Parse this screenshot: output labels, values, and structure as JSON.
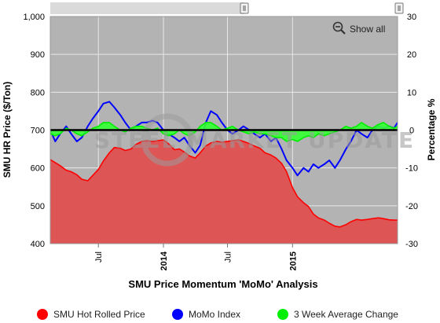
{
  "chart_data": {
    "type": "area",
    "title": "SMU Price Momentum 'MoMo' Analysis",
    "ylabel": "SMU HR Price ($/Ton)",
    "y2label": "Percentage %",
    "ylim": [
      400,
      1000
    ],
    "y2lim": [
      -30,
      30
    ],
    "yticks": [
      "400",
      "500",
      "600",
      "700",
      "800",
      "900",
      "1,000"
    ],
    "y2ticks": [
      "-30",
      "-20",
      "-10",
      "0",
      "10",
      "20",
      "30"
    ],
    "xlim": [
      "2013-02-15",
      "2015-10-25"
    ],
    "xticks": [
      {
        "date": "2013-07-01",
        "label": "Jul",
        "bold": false
      },
      {
        "date": "2014-01-01",
        "label": "2014",
        "bold": true
      },
      {
        "date": "2014-07-01",
        "label": "Jul",
        "bold": false
      },
      {
        "date": "2015-01-01",
        "label": "2015",
        "bold": true
      }
    ],
    "grid": true,
    "legend_position": "bottom",
    "watermark": "STEEL MARKET UPDATE",
    "series": [
      {
        "name": "SMU Hot Rolled Price",
        "axis": "left",
        "color": "#ff0000",
        "fill": "#dd5555",
        "points": [
          [
            "2013-02-15",
            622
          ],
          [
            "2013-03-01",
            614
          ],
          [
            "2013-03-15",
            606
          ],
          [
            "2013-04-01",
            594
          ],
          [
            "2013-04-15",
            590
          ],
          [
            "2013-05-01",
            582
          ],
          [
            "2013-05-15",
            570
          ],
          [
            "2013-06-01",
            566
          ],
          [
            "2013-06-15",
            580
          ],
          [
            "2013-07-01",
            596
          ],
          [
            "2013-07-15",
            618
          ],
          [
            "2013-08-01",
            640
          ],
          [
            "2013-08-15",
            654
          ],
          [
            "2013-09-01",
            652
          ],
          [
            "2013-09-15",
            646
          ],
          [
            "2013-10-01",
            650
          ],
          [
            "2013-10-15",
            662
          ],
          [
            "2013-11-01",
            670
          ],
          [
            "2013-11-15",
            672
          ],
          [
            "2013-12-01",
            670
          ],
          [
            "2013-12-15",
            672
          ],
          [
            "2014-01-01",
            674
          ],
          [
            "2014-01-15",
            664
          ],
          [
            "2014-02-01",
            648
          ],
          [
            "2014-02-15",
            650
          ],
          [
            "2014-03-01",
            642
          ],
          [
            "2014-03-15",
            632
          ],
          [
            "2014-04-01",
            626
          ],
          [
            "2014-04-15",
            640
          ],
          [
            "2014-05-01",
            658
          ],
          [
            "2014-05-15",
            666
          ],
          [
            "2014-06-01",
            670
          ],
          [
            "2014-06-15",
            668
          ],
          [
            "2014-07-01",
            670
          ],
          [
            "2014-07-15",
            672
          ],
          [
            "2014-08-01",
            674
          ],
          [
            "2014-08-15",
            670
          ],
          [
            "2014-09-01",
            664
          ],
          [
            "2014-09-15",
            658
          ],
          [
            "2014-10-01",
            652
          ],
          [
            "2014-10-15",
            640
          ],
          [
            "2014-11-01",
            634
          ],
          [
            "2014-11-15",
            626
          ],
          [
            "2014-12-01",
            612
          ],
          [
            "2014-12-15",
            590
          ],
          [
            "2015-01-01",
            548
          ],
          [
            "2015-01-15",
            524
          ],
          [
            "2015-02-01",
            508
          ],
          [
            "2015-02-15",
            498
          ],
          [
            "2015-03-01",
            478
          ],
          [
            "2015-03-15",
            468
          ],
          [
            "2015-04-01",
            462
          ],
          [
            "2015-04-15",
            454
          ],
          [
            "2015-05-01",
            446
          ],
          [
            "2015-05-15",
            444
          ],
          [
            "2015-06-01",
            450
          ],
          [
            "2015-06-15",
            458
          ],
          [
            "2015-07-01",
            464
          ],
          [
            "2015-07-15",
            462
          ],
          [
            "2015-08-01",
            464
          ],
          [
            "2015-08-15",
            466
          ],
          [
            "2015-09-01",
            468
          ],
          [
            "2015-09-15",
            466
          ],
          [
            "2015-10-01",
            463
          ],
          [
            "2015-10-15",
            462
          ],
          [
            "2015-10-25",
            462
          ]
        ]
      },
      {
        "name": "MoMo Index",
        "axis": "right",
        "color": "#0000ff",
        "points": [
          [
            "2013-02-15",
            0
          ],
          [
            "2013-03-01",
            -3
          ],
          [
            "2013-03-15",
            -1
          ],
          [
            "2013-04-01",
            1
          ],
          [
            "2013-04-15",
            -1
          ],
          [
            "2013-05-01",
            -3
          ],
          [
            "2013-05-15",
            -2
          ],
          [
            "2013-06-01",
            1
          ],
          [
            "2013-06-15",
            3
          ],
          [
            "2013-07-01",
            5
          ],
          [
            "2013-07-15",
            7
          ],
          [
            "2013-08-01",
            7.5
          ],
          [
            "2013-08-15",
            6
          ],
          [
            "2013-09-01",
            4
          ],
          [
            "2013-09-15",
            2
          ],
          [
            "2013-10-01",
            0
          ],
          [
            "2013-10-15",
            1
          ],
          [
            "2013-11-01",
            2
          ],
          [
            "2013-11-15",
            2
          ],
          [
            "2013-12-01",
            2.5
          ],
          [
            "2013-12-15",
            2
          ],
          [
            "2014-01-01",
            0
          ],
          [
            "2014-01-15",
            -1
          ],
          [
            "2014-02-01",
            -2
          ],
          [
            "2014-02-15",
            -3
          ],
          [
            "2014-03-01",
            -2
          ],
          [
            "2014-03-15",
            -4
          ],
          [
            "2014-04-01",
            -6
          ],
          [
            "2014-04-15",
            -4
          ],
          [
            "2014-05-01",
            2
          ],
          [
            "2014-05-15",
            5
          ],
          [
            "2014-06-01",
            4
          ],
          [
            "2014-06-15",
            2
          ],
          [
            "2014-07-01",
            0
          ],
          [
            "2014-07-15",
            -1
          ],
          [
            "2014-08-01",
            0
          ],
          [
            "2014-08-15",
            1
          ],
          [
            "2014-09-01",
            0
          ],
          [
            "2014-09-15",
            -1
          ],
          [
            "2014-10-01",
            -2
          ],
          [
            "2014-10-15",
            -1
          ],
          [
            "2014-11-01",
            -3
          ],
          [
            "2014-11-15",
            -2
          ],
          [
            "2014-12-01",
            -5
          ],
          [
            "2014-12-15",
            -8
          ],
          [
            "2015-01-01",
            -10
          ],
          [
            "2015-01-15",
            -12
          ],
          [
            "2015-02-01",
            -10
          ],
          [
            "2015-02-15",
            -11
          ],
          [
            "2015-03-01",
            -9
          ],
          [
            "2015-03-15",
            -10
          ],
          [
            "2015-04-01",
            -9
          ],
          [
            "2015-04-15",
            -8
          ],
          [
            "2015-05-01",
            -10
          ],
          [
            "2015-05-15",
            -8
          ],
          [
            "2015-06-01",
            -5
          ],
          [
            "2015-06-15",
            -3
          ],
          [
            "2015-07-01",
            0
          ],
          [
            "2015-07-15",
            -1
          ],
          [
            "2015-08-01",
            -2
          ],
          [
            "2015-08-15",
            0
          ],
          [
            "2015-09-01",
            1
          ],
          [
            "2015-09-15",
            0.5
          ],
          [
            "2015-10-01",
            1
          ],
          [
            "2015-10-15",
            0.5
          ],
          [
            "2015-10-25",
            2
          ]
        ]
      },
      {
        "name": "3 Week Average Change",
        "axis": "right",
        "color": "#00ee00",
        "fill": "#33ff33",
        "points": [
          [
            "2013-02-15",
            -1
          ],
          [
            "2013-03-01",
            -1.5
          ],
          [
            "2013-03-15",
            -1
          ],
          [
            "2013-04-01",
            0.5
          ],
          [
            "2013-04-15",
            0
          ],
          [
            "2013-05-01",
            -1
          ],
          [
            "2013-05-15",
            -1.5
          ],
          [
            "2013-06-01",
            -0.5
          ],
          [
            "2013-06-15",
            0.5
          ],
          [
            "2013-07-01",
            1
          ],
          [
            "2013-07-15",
            2
          ],
          [
            "2013-08-01",
            2
          ],
          [
            "2013-08-15",
            1
          ],
          [
            "2013-09-01",
            0
          ],
          [
            "2013-09-15",
            -0.5
          ],
          [
            "2013-10-01",
            0.5
          ],
          [
            "2013-10-15",
            1
          ],
          [
            "2013-11-01",
            1
          ],
          [
            "2013-11-15",
            0.5
          ],
          [
            "2013-12-01",
            0
          ],
          [
            "2013-12-15",
            0.5
          ],
          [
            "2014-01-01",
            -1
          ],
          [
            "2014-01-15",
            -1.5
          ],
          [
            "2014-02-01",
            -1
          ],
          [
            "2014-02-15",
            0
          ],
          [
            "2014-03-01",
            -1
          ],
          [
            "2014-03-15",
            -1.5
          ],
          [
            "2014-04-01",
            -0.5
          ],
          [
            "2014-04-15",
            1
          ],
          [
            "2014-05-01",
            2
          ],
          [
            "2014-05-15",
            2
          ],
          [
            "2014-06-01",
            1
          ],
          [
            "2014-06-15",
            0
          ],
          [
            "2014-07-01",
            0.5
          ],
          [
            "2014-07-15",
            1
          ],
          [
            "2014-08-01",
            0
          ],
          [
            "2014-08-15",
            -0.5
          ],
          [
            "2014-09-01",
            -1
          ],
          [
            "2014-09-15",
            -0.5
          ],
          [
            "2014-10-01",
            -1
          ],
          [
            "2014-10-15",
            -1
          ],
          [
            "2014-11-01",
            -1.5
          ],
          [
            "2014-11-15",
            -2
          ],
          [
            "2014-12-01",
            -2
          ],
          [
            "2014-12-15",
            -3
          ],
          [
            "2015-01-01",
            -2.5
          ],
          [
            "2015-01-15",
            -3
          ],
          [
            "2015-02-01",
            -2
          ],
          [
            "2015-02-15",
            -1.5
          ],
          [
            "2015-03-01",
            -2
          ],
          [
            "2015-03-15",
            -1
          ],
          [
            "2015-04-01",
            -1.5
          ],
          [
            "2015-04-15",
            -1
          ],
          [
            "2015-05-01",
            -0.5
          ],
          [
            "2015-05-15",
            0
          ],
          [
            "2015-06-01",
            1
          ],
          [
            "2015-06-15",
            0.5
          ],
          [
            "2015-07-01",
            1
          ],
          [
            "2015-07-15",
            2
          ],
          [
            "2015-08-01",
            1
          ],
          [
            "2015-08-15",
            0.5
          ],
          [
            "2015-09-01",
            1.5
          ],
          [
            "2015-09-15",
            2
          ],
          [
            "2015-10-01",
            1
          ],
          [
            "2015-10-15",
            0.5
          ],
          [
            "2015-10-25",
            1
          ]
        ]
      }
    ]
  },
  "ui": {
    "show_all_label": "Show all",
    "zoom_icon": "zoom-out-magnifier-icon",
    "navigator_handle_icon": "drag-handle-icon",
    "background_color": "#b3b3b3",
    "zero_line_color": "#000000"
  }
}
